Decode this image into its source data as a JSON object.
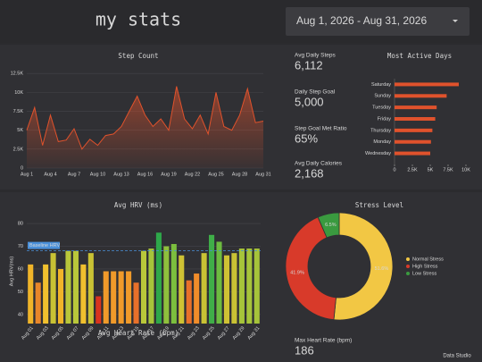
{
  "header": {
    "title": "my stats",
    "date_range": "Aug 1, 2026 - Aug 31, 2026"
  },
  "kpis": [
    {
      "label": "Avg Daily Steps",
      "value": "6,112"
    },
    {
      "label": "Daily Step Goal",
      "value": "5,000"
    },
    {
      "label": "Step Goal Met Ratio",
      "value": "65%"
    },
    {
      "label": "Avg Daily Calories",
      "value": "2,168"
    },
    {
      "label": "Max Heart Rate (bpm)",
      "value": "186"
    }
  ],
  "footer": "Data Studio",
  "chart_data": [
    {
      "type": "line",
      "title": "Step Count",
      "color": "#e0522c",
      "categories": [
        "Aug 1",
        null,
        null,
        "Aug 4",
        null,
        null,
        "Aug 7",
        null,
        null,
        "Aug 10",
        null,
        null,
        "Aug 13",
        null,
        null,
        "Aug 16",
        null,
        null,
        "Aug 19",
        null,
        null,
        "Aug 22",
        null,
        null,
        "Aug 25",
        null,
        null,
        "Aug 28",
        null,
        null,
        "Aug 31"
      ],
      "values": [
        5000,
        8000,
        3000,
        7000,
        3500,
        3700,
        5200,
        2500,
        3800,
        3000,
        4300,
        4500,
        5500,
        7500,
        9500,
        7000,
        5500,
        6500,
        5000,
        10800,
        6500,
        5200,
        7000,
        4500,
        10000,
        5500,
        5000,
        7000,
        10500,
        6000,
        6200
      ],
      "ylim": [
        0,
        13000
      ],
      "yticks": [
        0,
        {
          "value": 2500,
          "label": "2.5K"
        },
        {
          "value": 5000,
          "label": "5K"
        },
        {
          "value": 7500,
          "label": "7.5K"
        },
        {
          "value": 10000,
          "label": "10K"
        },
        {
          "value": 12500,
          "label": "12.5K"
        }
      ],
      "grid": true
    },
    {
      "type": "bar",
      "orientation": "horizontal",
      "title": "Most Active Days",
      "color": "#e0522c",
      "categories": [
        "Saturday",
        "Sunday",
        "Tuesday",
        "Friday",
        "Thursday",
        "Monday",
        "Wednesday"
      ],
      "values": [
        9000,
        7300,
        5900,
        5700,
        5300,
        5100,
        5000
      ],
      "xlim": [
        0,
        10000
      ],
      "xticks": [
        0,
        {
          "value": 2500,
          "label": "2.5K"
        },
        {
          "value": 5000,
          "label": "5K"
        },
        {
          "value": 7500,
          "label": "7.5K"
        },
        {
          "value": 10000,
          "label": "10K"
        }
      ]
    },
    {
      "type": "bar",
      "title": "Avg HRV (ms)",
      "ylabel": "Avg HRV(ms)",
      "categories": [
        "Aug 01",
        null,
        "Aug 03",
        null,
        "Aug 05",
        null,
        "Aug 07",
        null,
        "Aug 09",
        null,
        "Aug 11",
        null,
        "Aug 13",
        null,
        "Aug 15",
        null,
        "Aug 17",
        null,
        "Aug 19",
        null,
        "Aug 21",
        null,
        "Aug 23",
        null,
        "Aug 25",
        null,
        "Aug 27",
        null,
        "Aug 29",
        null,
        "Aug 31"
      ],
      "values": [
        62,
        54,
        62,
        67,
        60,
        68,
        68,
        62,
        67,
        48,
        59,
        59,
        59,
        59,
        54,
        68,
        69,
        76,
        70,
        71,
        66,
        55,
        58,
        67,
        75,
        72,
        66,
        67,
        69,
        69,
        69
      ],
      "colors": [
        "#f0b429",
        "#e8862a",
        "#f0c02e",
        "#c9c234",
        "#f0b429",
        "#b9c73a",
        "#b9c73a",
        "#f0c02e",
        "#c9c234",
        "#d9331f",
        "#f09a2a",
        "#f09a2a",
        "#f09a2a",
        "#f09a2a",
        "#e8702a",
        "#b9c73a",
        "#a6c43a",
        "#2ea84a",
        "#8fc03c",
        "#7cbf3e",
        "#cfc234",
        "#e8702a",
        "#f08c2a",
        "#c9c234",
        "#3fae48",
        "#6dbb40",
        "#cfc234",
        "#c9c234",
        "#a6c43a",
        "#a6c43a",
        "#a6c43a"
      ],
      "ylim": [
        36,
        82
      ],
      "yticks": [
        40,
        50,
        60,
        70,
        80
      ],
      "baseline": {
        "label": "Baseline HRV",
        "value": 68,
        "color": "#4a90d9"
      },
      "grid": true
    },
    {
      "type": "pie",
      "donut": true,
      "title": "Stress Level",
      "categories": [
        "Normal Stress",
        "High Stress",
        "Low Stress"
      ],
      "values": [
        51.6,
        41.9,
        6.5
      ],
      "value_labels": [
        "51.6%",
        "41.9%",
        "6.5%"
      ],
      "colors": [
        "#f2c744",
        "#d83a2a",
        "#3a9a3f"
      ],
      "legend": "right"
    },
    {
      "type": "line",
      "title": "Avg Heart Rate (bpm)"
    }
  ]
}
